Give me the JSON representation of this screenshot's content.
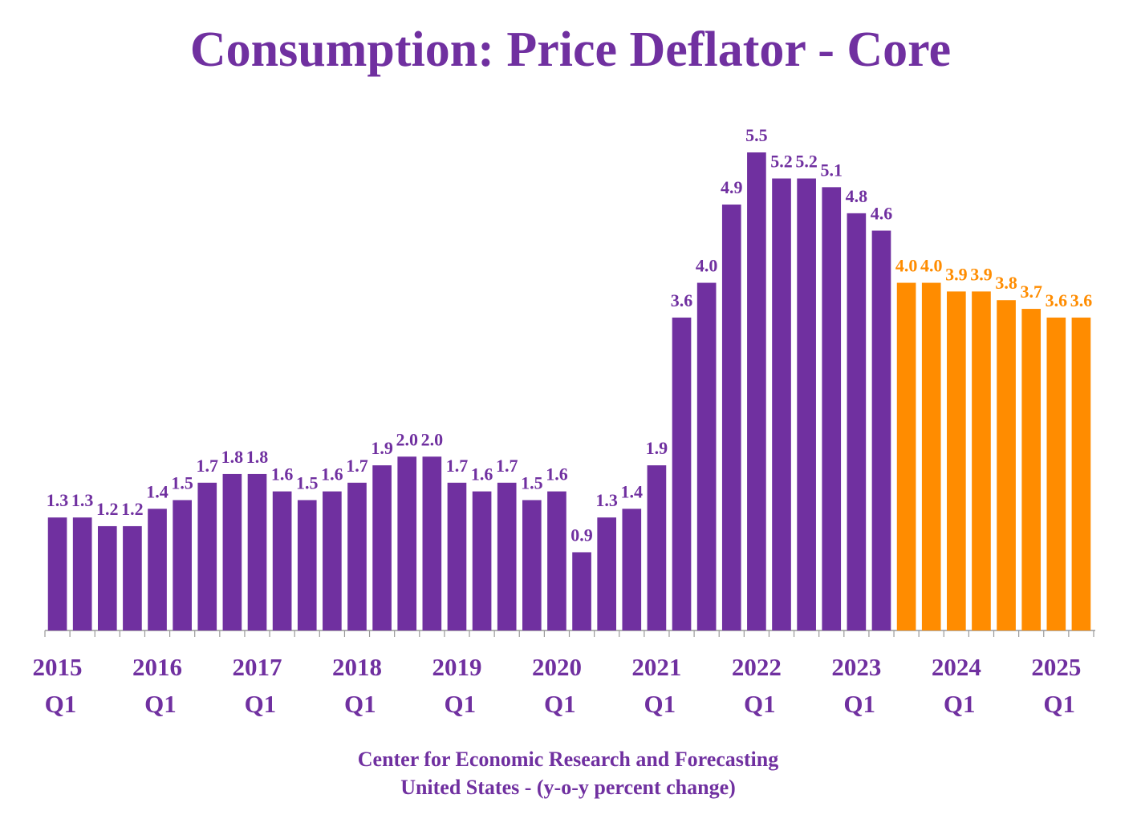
{
  "chart_data": {
    "type": "bar",
    "title": "Consumption: Price Deflator - Core",
    "footer": [
      "Center for Economic Research and Forecasting",
      "United States - (y-o-y percent change)"
    ],
    "categories": [
      "2015 Q1",
      null,
      null,
      null,
      "2016 Q1",
      null,
      null,
      null,
      "2017 Q1",
      null,
      null,
      null,
      "2018 Q1",
      null,
      null,
      null,
      "2019 Q1",
      null,
      null,
      null,
      "2020 Q1",
      null,
      null,
      null,
      "2021 Q1",
      null,
      null,
      null,
      "2022 Q1",
      null,
      null,
      null,
      "2023 Q1",
      null,
      null,
      null,
      "2024 Q1",
      null,
      null,
      null,
      "2025 Q1",
      null
    ],
    "values": [
      1.3,
      1.3,
      1.2,
      1.2,
      1.4,
      1.5,
      1.7,
      1.8,
      1.8,
      1.6,
      1.5,
      1.6,
      1.7,
      1.9,
      2.0,
      2.0,
      1.7,
      1.6,
      1.7,
      1.5,
      1.6,
      0.9,
      1.3,
      1.4,
      1.9,
      3.6,
      4.0,
      4.9,
      5.5,
      5.2,
      5.2,
      5.1,
      4.8,
      4.6,
      4.0,
      4.0,
      3.9,
      3.9,
      3.8,
      3.7,
      3.6,
      3.6
    ],
    "value_labels": [
      "1.3",
      "1.3",
      "1.2",
      "1.2",
      "1.4",
      "1.5",
      "1.7",
      "1.8",
      "1.8",
      "1.6",
      "1.5",
      "1.6",
      "1.7",
      "1.9",
      "2.0",
      "2.0",
      "1.7",
      "1.6",
      "1.7",
      "1.5",
      "1.6",
      "0.9",
      "1.3",
      "1.4",
      "1.9",
      "3.6",
      "4.0",
      "4.9",
      "5.5",
      "5.2",
      "5.2",
      "5.1",
      "4.8",
      "4.6",
      "4.0",
      "4.0",
      "3.9",
      "3.9",
      "3.8",
      "3.7",
      "3.6",
      "3.6"
    ],
    "colors": [
      "#7030a0",
      "#7030a0",
      "#7030a0",
      "#7030a0",
      "#7030a0",
      "#7030a0",
      "#7030a0",
      "#7030a0",
      "#7030a0",
      "#7030a0",
      "#7030a0",
      "#7030a0",
      "#7030a0",
      "#7030a0",
      "#7030a0",
      "#7030a0",
      "#7030a0",
      "#7030a0",
      "#7030a0",
      "#7030a0",
      "#7030a0",
      "#7030a0",
      "#7030a0",
      "#7030a0",
      "#7030a0",
      "#7030a0",
      "#7030a0",
      "#7030a0",
      "#7030a0",
      "#7030a0",
      "#7030a0",
      "#7030a0",
      "#7030a0",
      "#7030a0",
      "#ff8c00",
      "#ff8c00",
      "#ff8c00",
      "#ff8c00",
      "#ff8c00",
      "#ff8c00",
      "#ff8c00",
      "#ff8c00"
    ]
  }
}
